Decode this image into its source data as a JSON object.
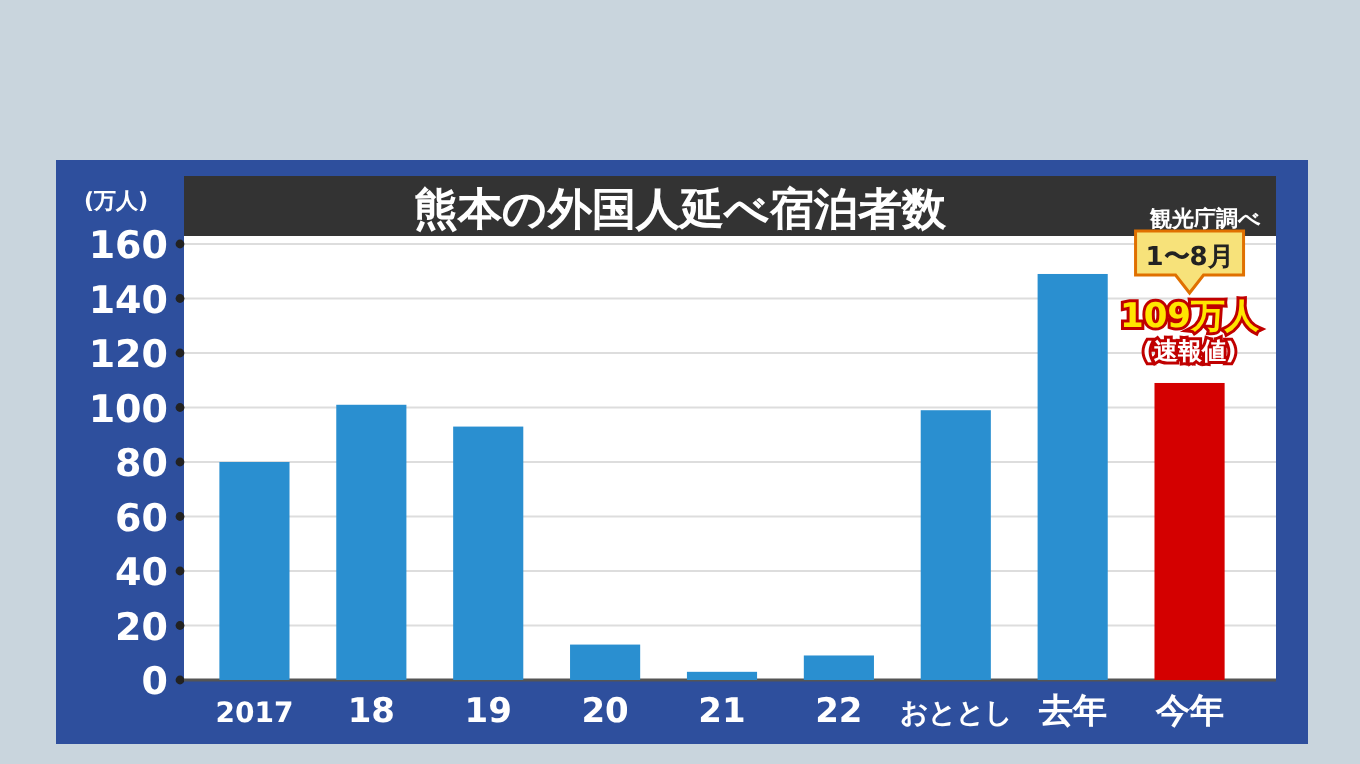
{
  "chart_data": {
    "type": "bar",
    "title": "熊本の外国人延べ宿泊者数",
    "ylabel": "(万人)",
    "categories": [
      "2017",
      "18",
      "19",
      "20",
      "21",
      "22",
      "おととし",
      "去年",
      "今年"
    ],
    "values": [
      80,
      101,
      93,
      13,
      3,
      9,
      99,
      149,
      109
    ],
    "colors": [
      "#2a8fd0",
      "#2a8fd0",
      "#2a8fd0",
      "#2a8fd0",
      "#2a8fd0",
      "#2a8fd0",
      "#2a8fd0",
      "#2a8fd0",
      "#d40000"
    ],
    "value_labels": [
      null,
      null,
      null,
      null,
      null,
      null,
      null,
      null,
      "109万人"
    ],
    "ylim": [
      0,
      160
    ],
    "yticks": [
      0,
      20,
      40,
      60,
      80,
      100,
      120,
      140,
      160
    ],
    "grid": "y",
    "annotations": [
      "1〜8月",
      "(速報値)",
      "観光庁調べ"
    ]
  }
}
